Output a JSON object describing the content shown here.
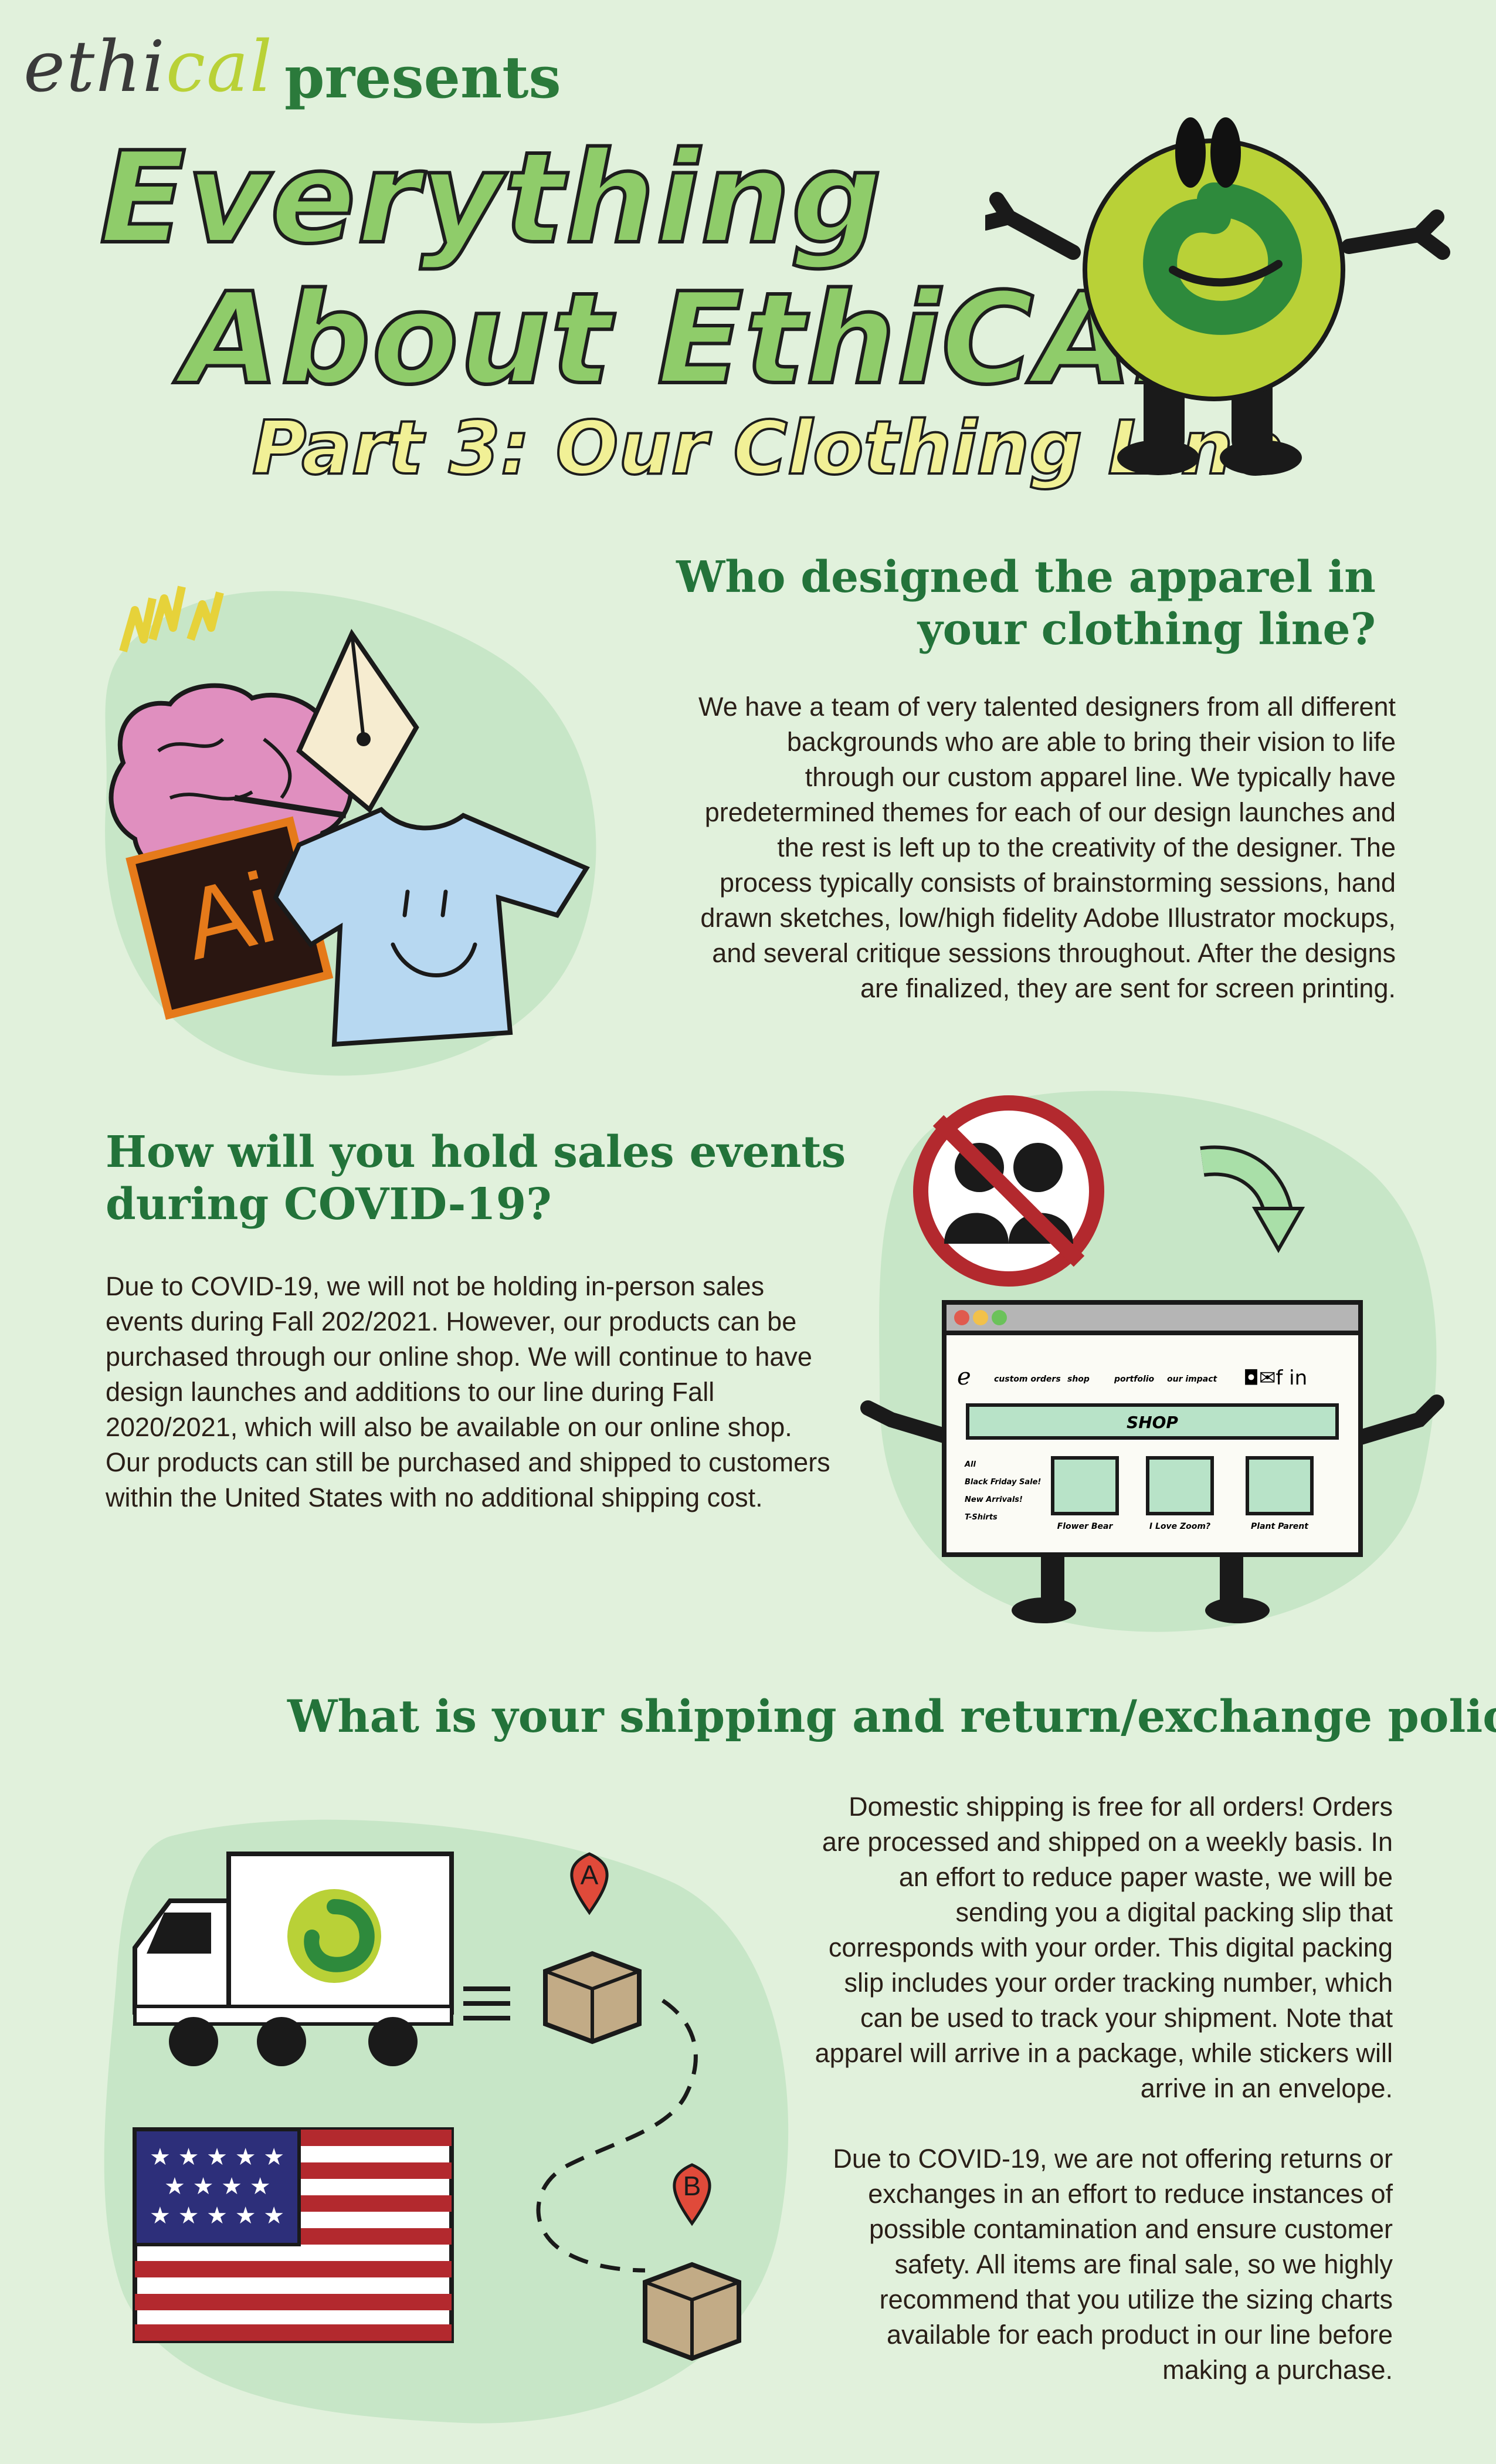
{
  "header": {
    "brand_prefix": "ethi",
    "brand_suffix": "cal",
    "presents": "presents",
    "title_line1": "Everything",
    "title_line2": "About EthiCAL!",
    "subtitle": "Part 3: Our Clothing Line"
  },
  "section_design": {
    "heading": "Who designed the apparel in your clothing line?",
    "body": "We have a team of very talented designers from all different backgrounds who are able to bring their vision to life through our custom apparel line. We typically have predetermined themes for each of our design launches and the rest is left up to the creativity of the designer. The process typically consists of brainstorming sessions, hand drawn sketches, low/high fidelity Adobe Illustrator mockups, and several critique sessions throughout. After the designs are finalized, they are sent for screen printing.",
    "ai_icon_label": "Ai"
  },
  "section_covid": {
    "heading": "How will you hold sales events during COVID-19?",
    "body": "Due to COVID-19, we will not be holding in-person sales events during Fall 202/2021. However, our products can be purchased through our online shop. We will continue to have design launches and additions to our line during Fall 2020/2021, which will also be available on our online shop. Our products can still be purchased and shipped to customers within the United States with no additional shipping cost.",
    "shop_mockup": {
      "logo": "e",
      "nav": [
        "custom orders",
        "shop",
        "portfolio",
        "our impact"
      ],
      "social": "◘✉f in",
      "banner": "SHOP",
      "sidebar": [
        "All",
        "Black Friday Sale!",
        "New Arrivals!",
        "T-Shirts"
      ],
      "products": [
        "Flower Bear",
        "I Love Zoom?",
        "Plant Parent"
      ]
    }
  },
  "section_shipping": {
    "heading": "What is your shipping and return/exchange policy?",
    "body1": "Domestic shipping is free for all orders! Orders are processed and shipped on a weekly basis. In an effort to reduce paper waste, we will be sending you a digital packing slip that corresponds with your order. This digital packing slip includes your order tracking number, which can be used to track your shipment. Note that apparel will arrive in a package, while stickers will arrive in an envelope.",
    "body2": "Due to COVID-19, we are not offering returns or exchanges in an effort to reduce instances of possible contamination and ensure customer safety. All items are final sale, so we highly recommend that you utilize the sizing charts available for each product in our line before making a purchase.",
    "pin_a": "A",
    "pin_b": "B"
  },
  "colors": {
    "background": "#e1f1dc",
    "blob": "#c7e6c7",
    "heading_green": "#23733a",
    "title_green": "#8fcc6a",
    "subtitle_yellow": "#f1f096",
    "mascot_lime": "#b9d137"
  }
}
